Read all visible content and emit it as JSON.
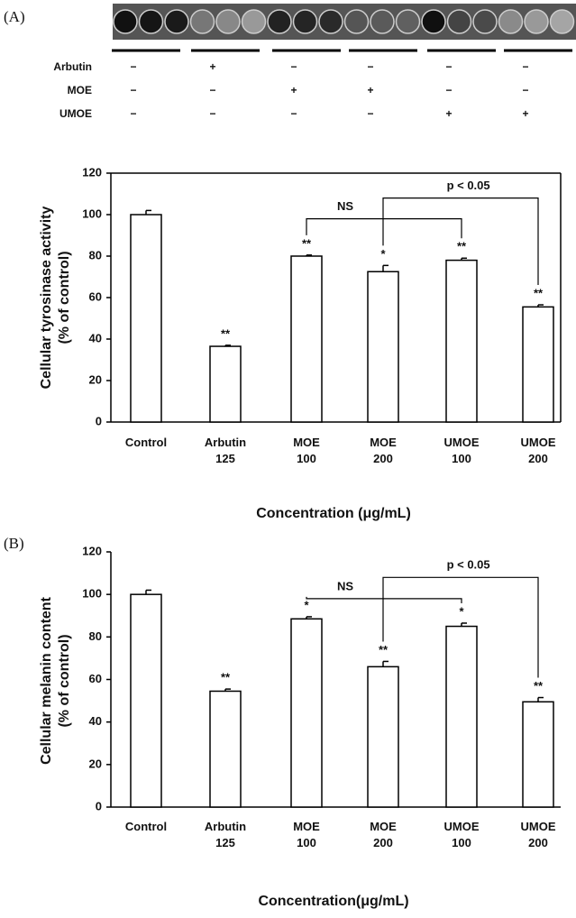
{
  "panels": [
    "(A)",
    "(B)"
  ],
  "treatments": {
    "rows": [
      {
        "name": "Arbutin",
        "signs": [
          "−",
          "+",
          "−",
          "−",
          "−",
          "−"
        ]
      },
      {
        "name": "MOE",
        "signs": [
          "−",
          "−",
          "+",
          "+",
          "−",
          "−"
        ]
      },
      {
        "name": "UMOE",
        "signs": [
          "−",
          "−",
          "−",
          "−",
          "+",
          "+"
        ]
      }
    ]
  },
  "chart_data": [
    {
      "type": "bar",
      "ylabel": [
        "Cellular  tyrosinase activity",
        "(% of control)"
      ],
      "xlabel": "Concentration (μg/mL)",
      "categories": [
        [
          "Control"
        ],
        [
          "Arbutin",
          "125"
        ],
        [
          "MOE",
          "100"
        ],
        [
          "MOE",
          "200"
        ],
        [
          "UMOE",
          "100"
        ],
        [
          "UMOE",
          "200"
        ]
      ],
      "values": [
        100,
        36.5,
        80,
        72.5,
        78,
        55.5
      ],
      "errors": [
        2,
        0.5,
        0.5,
        3,
        1,
        1
      ],
      "significance": [
        null,
        "**",
        "**",
        "*",
        "**",
        "**"
      ],
      "comparisons": [
        {
          "label": "NS",
          "from": 2,
          "to": 4
        },
        {
          "label": "p < 0.05",
          "from": 3,
          "to": 5
        }
      ],
      "color": "#ffffff",
      "ylim": [
        0,
        120
      ],
      "yticks": [
        0,
        20,
        40,
        60,
        80,
        100,
        120
      ],
      "box": true
    },
    {
      "type": "bar",
      "ylabel": [
        "Cellular melanin content",
        "(% of control)"
      ],
      "xlabel": "Concentration(μg/mL)",
      "categories": [
        [
          "Control"
        ],
        [
          "Arbutin",
          "125"
        ],
        [
          "MOE",
          "100"
        ],
        [
          "MOE",
          "200"
        ],
        [
          "UMOE",
          "100"
        ],
        [
          "UMOE",
          "200"
        ]
      ],
      "values": [
        100,
        54.5,
        88.5,
        66,
        85,
        49.5
      ],
      "errors": [
        2,
        1,
        1,
        2.5,
        1.5,
        2
      ],
      "significance": [
        null,
        "**",
        "*",
        "**",
        "*",
        "**"
      ],
      "comparisons": [
        {
          "label": "NS",
          "from": 2,
          "to": 4
        },
        {
          "label": "p < 0.05",
          "from": 3,
          "to": 5
        }
      ],
      "color": "#ffffff",
      "ylim": [
        0,
        120
      ],
      "yticks": [
        0,
        20,
        40,
        60,
        80,
        100,
        120
      ],
      "box": false
    }
  ]
}
